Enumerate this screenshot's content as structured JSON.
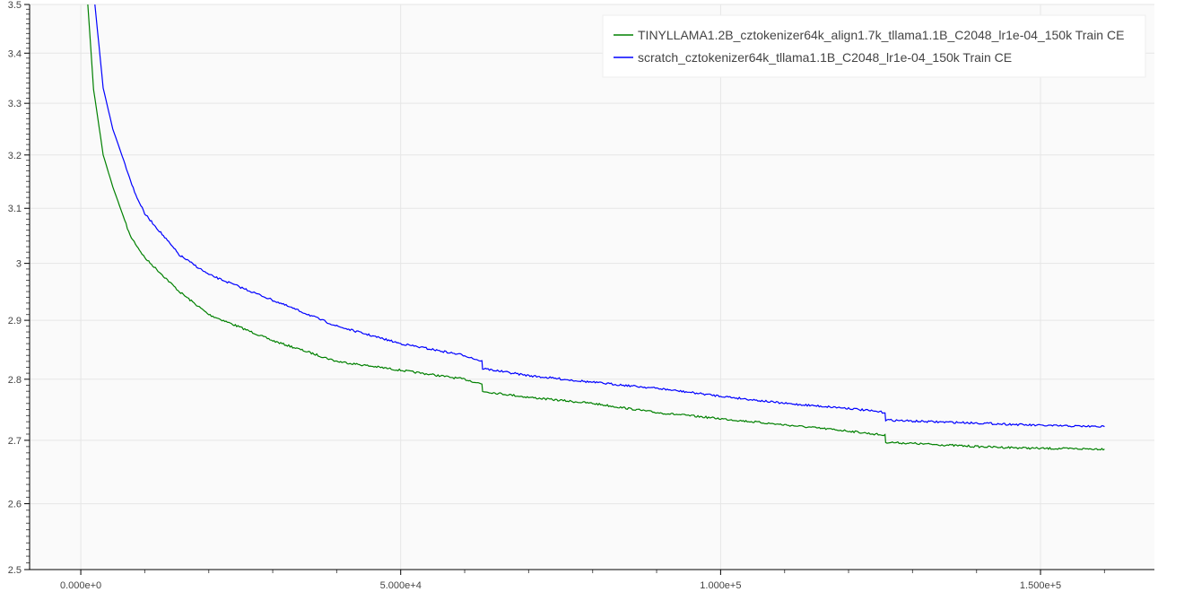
{
  "chart_data": {
    "type": "line",
    "title": "",
    "xlabel": "",
    "ylabel": "",
    "xlim": [
      -8000,
      167800
    ],
    "ylim": [
      2.5,
      3.5
    ],
    "y_scale": "log",
    "grid": true,
    "legend_placement": "top-right",
    "x_ticks": [
      0,
      50000,
      100000,
      150000
    ],
    "x_tick_labels": [
      "0.000e+0",
      "5.000e+4",
      "1.000e+5",
      "1.500e+5"
    ],
    "y_ticks": [
      2.5,
      2.6,
      2.7,
      2.8,
      2.9,
      3.0,
      3.1,
      3.2,
      3.3,
      3.4,
      3.5
    ],
    "y_tick_labels": [
      "2.5",
      "2.6",
      "2.7",
      "2.8",
      "2.9",
      "3",
      "3.1",
      "3.2",
      "3.3",
      "3.4",
      "3.5"
    ],
    "series": [
      {
        "name": "TINYLLAMA1.2B_cztokenizer64k_align1.7k_tllama1.1B_C2048_lr1e-04_150k Train CE",
        "color": "#008000",
        "x": [
          1100,
          2000,
          3500,
          5000,
          7700,
          10000,
          15400,
          20000,
          30000,
          40000,
          50000,
          60000,
          62700,
          62800,
          70000,
          80000,
          90000,
          100000,
          110000,
          120000,
          125700,
          125800,
          130000,
          140000,
          150000,
          160000
        ],
        "y": [
          3.5,
          3.327,
          3.2,
          3.14,
          3.05,
          3.01,
          2.95,
          2.91,
          2.865,
          2.83,
          2.815,
          2.8,
          2.792,
          2.78,
          2.77,
          2.76,
          2.745,
          2.735,
          2.725,
          2.715,
          2.708,
          2.697,
          2.695,
          2.69,
          2.687,
          2.686
        ]
      },
      {
        "name": "scratch_cztokenizer64k_tllama1.1B_C2048_lr1e-04_150k Train CE",
        "color": "#0000ff",
        "x": [
          2200,
          3500,
          5000,
          8400,
          10000,
          15400,
          20000,
          30000,
          40000,
          50000,
          60000,
          62700,
          62800,
          70000,
          80000,
          90000,
          100000,
          110000,
          120000,
          125700,
          125800,
          130000,
          140000,
          150000,
          160000
        ],
        "y": [
          3.5,
          3.33,
          3.25,
          3.13,
          3.09,
          3.015,
          2.98,
          2.935,
          2.89,
          2.86,
          2.84,
          2.83,
          2.818,
          2.806,
          2.795,
          2.785,
          2.772,
          2.76,
          2.752,
          2.745,
          2.733,
          2.731,
          2.728,
          2.724,
          2.722
        ]
      }
    ]
  }
}
